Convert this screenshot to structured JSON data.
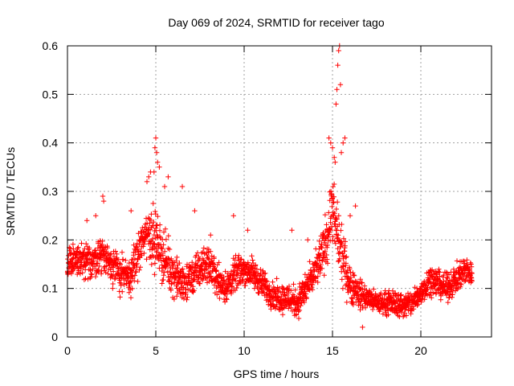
{
  "chart_data": {
    "type": "scatter",
    "title": "Day 069 of 2024, SRMTID for receiver tago",
    "xlabel": "GPS time / hours",
    "ylabel": "SRMTID / TECUs",
    "xlim": [
      0,
      24
    ],
    "ylim": [
      0,
      0.6
    ],
    "xticks": [
      0,
      5,
      10,
      15,
      20
    ],
    "xtick_labels": [
      "0",
      "5",
      "10",
      "15",
      "20"
    ],
    "yticks": [
      0,
      0.1,
      0.2,
      0.3,
      0.4,
      0.5,
      0.6
    ],
    "ytick_labels": [
      "0",
      "0.1",
      "0.2",
      "0.3",
      "0.4",
      "0.5",
      "0.6"
    ],
    "grid": true,
    "marker": "+",
    "marker_color": "#ff0000",
    "sample_step_hours": 0.02,
    "series": [
      {
        "name": "SRMTID",
        "description": "dense scatter; generated from the baseline envelope below",
        "baseline": [
          [
            0.0,
            0.15
          ],
          [
            0.5,
            0.16
          ],
          [
            1.0,
            0.15
          ],
          [
            1.5,
            0.16
          ],
          [
            2.0,
            0.17
          ],
          [
            2.5,
            0.15
          ],
          [
            3.0,
            0.13
          ],
          [
            3.5,
            0.12
          ],
          [
            4.0,
            0.17
          ],
          [
            4.5,
            0.22
          ],
          [
            5.0,
            0.2
          ],
          [
            5.5,
            0.16
          ],
          [
            6.0,
            0.13
          ],
          [
            6.5,
            0.11
          ],
          [
            7.0,
            0.12
          ],
          [
            7.5,
            0.14
          ],
          [
            8.0,
            0.15
          ],
          [
            8.5,
            0.12
          ],
          [
            9.0,
            0.1
          ],
          [
            9.5,
            0.13
          ],
          [
            10.0,
            0.14
          ],
          [
            10.5,
            0.13
          ],
          [
            11.0,
            0.11
          ],
          [
            11.5,
            0.09
          ],
          [
            12.0,
            0.08
          ],
          [
            12.5,
            0.08
          ],
          [
            13.0,
            0.07
          ],
          [
            13.5,
            0.1
          ],
          [
            14.0,
            0.13
          ],
          [
            14.5,
            0.18
          ],
          [
            15.0,
            0.26
          ],
          [
            15.5,
            0.17
          ],
          [
            16.0,
            0.11
          ],
          [
            16.5,
            0.09
          ],
          [
            17.0,
            0.08
          ],
          [
            17.5,
            0.07
          ],
          [
            18.0,
            0.07
          ],
          [
            18.5,
            0.07
          ],
          [
            19.0,
            0.065
          ],
          [
            19.5,
            0.07
          ],
          [
            20.0,
            0.09
          ],
          [
            20.5,
            0.12
          ],
          [
            21.0,
            0.11
          ],
          [
            21.5,
            0.1
          ],
          [
            22.0,
            0.12
          ],
          [
            22.5,
            0.14
          ],
          [
            22.9,
            0.13
          ]
        ],
        "spread": [
          [
            0.0,
            0.05
          ],
          [
            4.0,
            0.06
          ],
          [
            5.0,
            0.09
          ],
          [
            6.0,
            0.06
          ],
          [
            8.5,
            0.05
          ],
          [
            11.5,
            0.04
          ],
          [
            14.0,
            0.05
          ],
          [
            15.0,
            0.1
          ],
          [
            16.0,
            0.06
          ],
          [
            17.0,
            0.03
          ],
          [
            20.0,
            0.04
          ],
          [
            22.9,
            0.04
          ]
        ],
        "outliers": [
          [
            1.1,
            0.24
          ],
          [
            1.6,
            0.25
          ],
          [
            2.0,
            0.29
          ],
          [
            2.05,
            0.28
          ],
          [
            3.6,
            0.26
          ],
          [
            4.5,
            0.32
          ],
          [
            4.6,
            0.33
          ],
          [
            4.7,
            0.34
          ],
          [
            4.9,
            0.34
          ],
          [
            4.95,
            0.39
          ],
          [
            5.0,
            0.41
          ],
          [
            5.05,
            0.38
          ],
          [
            5.1,
            0.36
          ],
          [
            5.2,
            0.35
          ],
          [
            5.5,
            0.31
          ],
          [
            5.7,
            0.33
          ],
          [
            6.5,
            0.31
          ],
          [
            7.2,
            0.26
          ],
          [
            9.4,
            0.25
          ],
          [
            14.8,
            0.41
          ],
          [
            14.9,
            0.4
          ],
          [
            15.0,
            0.39
          ],
          [
            15.1,
            0.37
          ],
          [
            15.15,
            0.36
          ],
          [
            15.2,
            0.48
          ],
          [
            15.25,
            0.51
          ],
          [
            15.3,
            0.56
          ],
          [
            15.35,
            0.59
          ],
          [
            15.4,
            0.6
          ],
          [
            15.45,
            0.52
          ],
          [
            15.5,
            0.38
          ],
          [
            15.6,
            0.4
          ],
          [
            15.7,
            0.41
          ],
          [
            16.0,
            0.25
          ],
          [
            16.3,
            0.27
          ],
          [
            16.7,
            0.02
          ],
          [
            12.7,
            0.22
          ],
          [
            13.6,
            0.2
          ],
          [
            8.1,
            0.21
          ],
          [
            10.2,
            0.22
          ]
        ]
      }
    ]
  }
}
